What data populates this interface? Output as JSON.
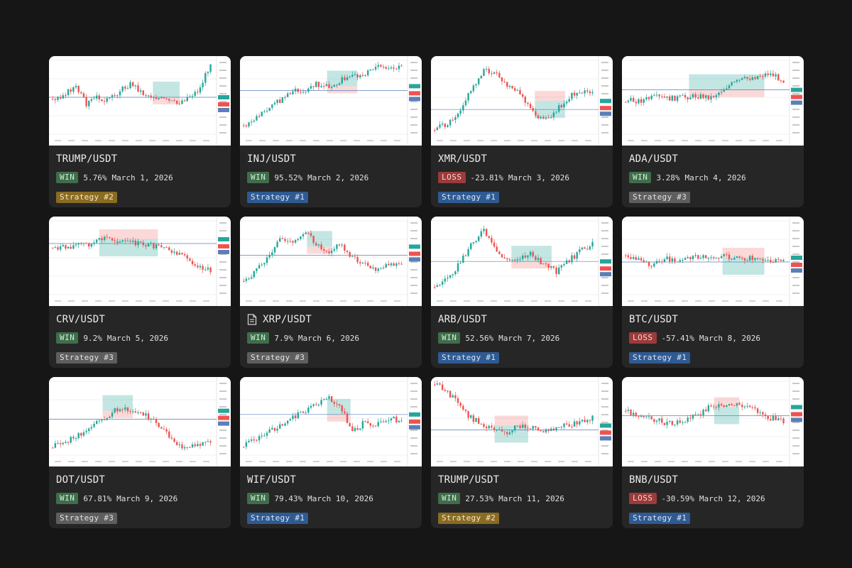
{
  "colors": {
    "win": "#3e6e4a",
    "loss": "#9b3b3a",
    "strategy_1": "#2f5a92",
    "strategy_2": "#8a6b22",
    "strategy_3": "#5e5e5e",
    "candle_up": "#26a69a",
    "candle_down": "#ef5350"
  },
  "trades": [
    {
      "pair": "TRUMP/USDT",
      "result": "WIN",
      "pct": "5.76%",
      "date": "March 1, 2026",
      "strategy": "Strategy #2",
      "strategy_id": 2,
      "doc_icon": false
    },
    {
      "pair": "INJ/USDT",
      "result": "WIN",
      "pct": "95.52%",
      "date": "March 2, 2026",
      "strategy": "Strategy #1",
      "strategy_id": 1,
      "doc_icon": false
    },
    {
      "pair": "XMR/USDT",
      "result": "LOSS",
      "pct": "-23.81%",
      "date": "March 3, 2026",
      "strategy": "Strategy #1",
      "strategy_id": 1,
      "doc_icon": false
    },
    {
      "pair": "ADA/USDT",
      "result": "WIN",
      "pct": "3.28%",
      "date": "March 4, 2026",
      "strategy": "Strategy #3",
      "strategy_id": 3,
      "doc_icon": false
    },
    {
      "pair": "CRV/USDT",
      "result": "WIN",
      "pct": "9.2%",
      "date": "March 5, 2026",
      "strategy": "Strategy #3",
      "strategy_id": 3,
      "doc_icon": false
    },
    {
      "pair": "XRP/USDT",
      "result": "WIN",
      "pct": "7.9%",
      "date": "March 6, 2026",
      "strategy": "Strategy #3",
      "strategy_id": 3,
      "doc_icon": true
    },
    {
      "pair": "ARB/USDT",
      "result": "WIN",
      "pct": "52.56%",
      "date": "March 7, 2026",
      "strategy": "Strategy #1",
      "strategy_id": 1,
      "doc_icon": false
    },
    {
      "pair": "BTC/USDT",
      "result": "LOSS",
      "pct": "-57.41%",
      "date": "March 8, 2026",
      "strategy": "Strategy #1",
      "strategy_id": 1,
      "doc_icon": false
    },
    {
      "pair": "DOT/USDT",
      "result": "WIN",
      "pct": "67.81%",
      "date": "March 9, 2026",
      "strategy": "Strategy #3",
      "strategy_id": 3,
      "doc_icon": false
    },
    {
      "pair": "WIF/USDT",
      "result": "WIN",
      "pct": "79.43%",
      "date": "March 10, 2026",
      "strategy": "Strategy #1",
      "strategy_id": 1,
      "doc_icon": false
    },
    {
      "pair": "TRUMP/USDT",
      "result": "WIN",
      "pct": "27.53%",
      "date": "March 11, 2026",
      "strategy": "Strategy #2",
      "strategy_id": 2,
      "doc_icon": false
    },
    {
      "pair": "BNB/USDT",
      "result": "LOSS",
      "pct": "-30.59%",
      "date": "March 12, 2026",
      "strategy": "Strategy #1",
      "strategy_id": 1,
      "doc_icon": false
    }
  ]
}
